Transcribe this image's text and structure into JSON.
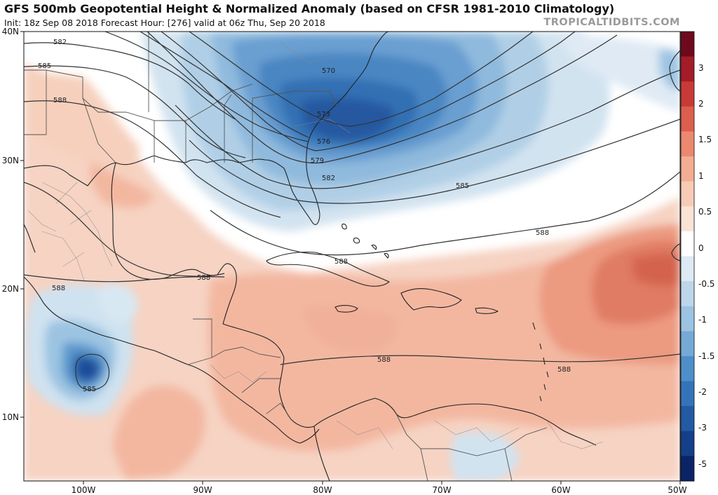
{
  "header": {
    "title": "GFS 500mb Geopotential Height & Normalized Anomaly (based on CFSR 1981-2010 Climatology)",
    "subtitle": "Init: 18z Sep 08 2018   Forecast Hour: [276]   valid at 06z Thu, Sep 20 2018",
    "brand": "TROPICALTIDBITS.COM"
  },
  "map": {
    "lat_ticks": [
      "40N",
      "30N",
      "20N",
      "10N"
    ],
    "lon_ticks": [
      "100W",
      "90W",
      "80W",
      "70W",
      "60W",
      "50W"
    ],
    "contour_labels": [
      "582",
      "585",
      "588",
      "570",
      "573",
      "576",
      "579",
      "582",
      "585",
      "588",
      "588",
      "588",
      "588",
      "588",
      "585",
      "588",
      "588"
    ],
    "colors": {
      "land_outline": "#222222",
      "border": "#666666",
      "contour": "#333333"
    }
  },
  "colorbar": {
    "ticks": [
      "3",
      "2",
      "1.5",
      "1",
      "0.5",
      "0",
      "-0.5",
      "-1",
      "-1.5",
      "-2",
      "-3",
      "-5"
    ],
    "colors": [
      "#6e0a1c",
      "#a31c28",
      "#c73a36",
      "#dc5e4e",
      "#ea8870",
      "#f3ad93",
      "#f8cbb6",
      "#fbe3d6",
      "#ffffff",
      "#dde9f3",
      "#bdd6ea",
      "#9cc4e2",
      "#75aad7",
      "#4f8fc9",
      "#3573b8",
      "#225aa3",
      "#153f88",
      "#0b2466"
    ]
  }
}
